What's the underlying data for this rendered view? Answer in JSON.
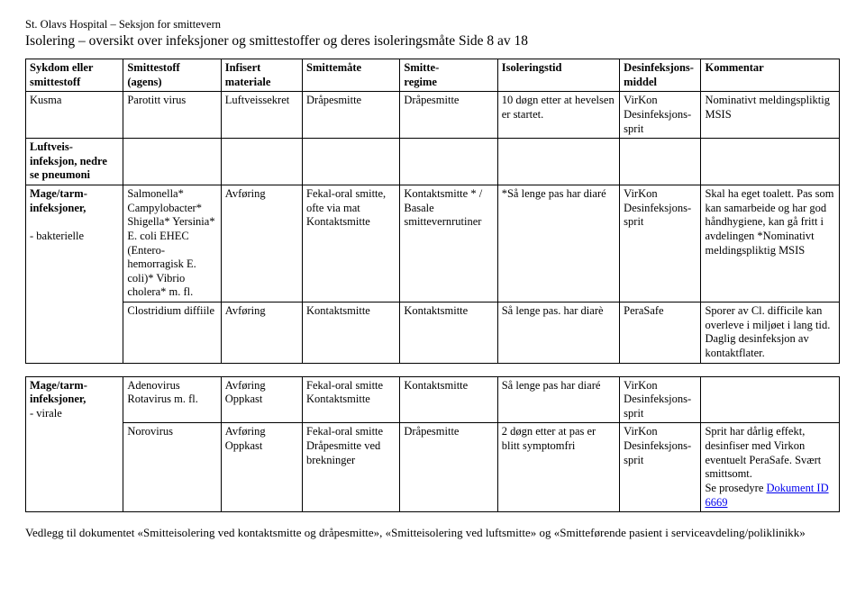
{
  "header": {
    "org": "St. Olavs Hospital – Seksjon for smittevern",
    "title": "Isolering – oversikt over infeksjoner og smittestoffer og deres isoleringsmåte Side 8 av 18"
  },
  "columns": {
    "c1a": "Sykdom eller",
    "c1b": "smittestoff",
    "c2a": "Smittestoff",
    "c2b": "(agens)",
    "c3a": "Infisert",
    "c3b": "materiale",
    "c4": "Smittemåte",
    "c5a": "Smitte-",
    "c5b": "regime",
    "c6": "Isoleringstid",
    "c7a": "Desinfeksjons-",
    "c7b": "middel",
    "c8": "Kommentar"
  },
  "rows": {
    "r1": {
      "sykdom": "Kusma",
      "agens": "Parotitt virus",
      "materiale": "Luftveissekret",
      "mate": "Dråpesmitte",
      "regime": "Dråpesmitte",
      "tid": "10 døgn etter at hevelsen er startet.",
      "middel": "VirKon Desinfeksjons-sprit",
      "kommentar": "Nominativt meldingspliktig MSIS"
    },
    "r2": {
      "sykdom": "Luftveis-infeksjon, nedre se pneumoni"
    },
    "r3": {
      "sykdom_a": "Mage/tarm-infeksjoner,",
      "sykdom_b": "- bakterielle",
      "agens": "Salmonella* Campylobacter* Shigella* Yersinia* E. coli EHEC (Entero-hemorragisk E. coli)* Vibrio cholera* m. fl.",
      "materiale": "Avføring",
      "mate": "Fekal-oral smitte, ofte via mat Kontaktsmitte",
      "regime": "Kontaktsmitte * / Basale smittevernrutiner",
      "tid": "*Så lenge pas har diaré",
      "middel": "VirKon Desinfeksjons-sprit",
      "kommentar": "Skal ha eget toalett. Pas som kan samarbeide og har god håndhygiene, kan gå fritt i avdelingen *Nominativt meldingspliktig MSIS"
    },
    "r4": {
      "agens": "Clostridium diffiile",
      "materiale": "Avføring",
      "mate": "Kontaktsmitte",
      "regime": "Kontaktsmitte",
      "tid": "Så lenge pas. har diarè",
      "middel": "PeraSafe",
      "kommentar": "Sporer av Cl. difficile kan overleve i miljøet i lang tid. Daglig desinfeksjon av kontaktflater."
    },
    "r5": {
      "sykdom_a": "Mage/tarm-infeksjoner,",
      "sykdom_b": "- virale",
      "agens": "Adenovirus Rotavirus m. fl.",
      "materiale": "Avføring Oppkast",
      "mate": "Fekal-oral smitte Kontaktsmitte",
      "regime": "Kontaktsmitte",
      "tid": "Så lenge pas har diaré",
      "middel": "VirKon Desinfeksjons-sprit",
      "kommentar": ""
    },
    "r6": {
      "agens": "Norovirus",
      "materiale": "Avføring Oppkast",
      "mate": "Fekal-oral smitte Dråpesmitte ved brekninger",
      "regime": "Dråpesmitte",
      "tid": "2 døgn etter at pas er blitt symptomfri",
      "middel": "VirKon Desinfeksjons-sprit",
      "kommentar_a": "Sprit har dårlig effekt, desinfiser med Virkon eventuelt PeraSafe. Svært smittsomt.",
      "kommentar_b": "Se prosedyre ",
      "kommentar_link": "Dokument ID 6669"
    }
  },
  "footer": "Vedlegg til dokumentet  «Smitteisolering ved kontaktsmitte og dråpesmitte», «Smitteisolering ved luftsmitte» og «Smitteførende pasient i serviceavdeling/poliklinikk»"
}
